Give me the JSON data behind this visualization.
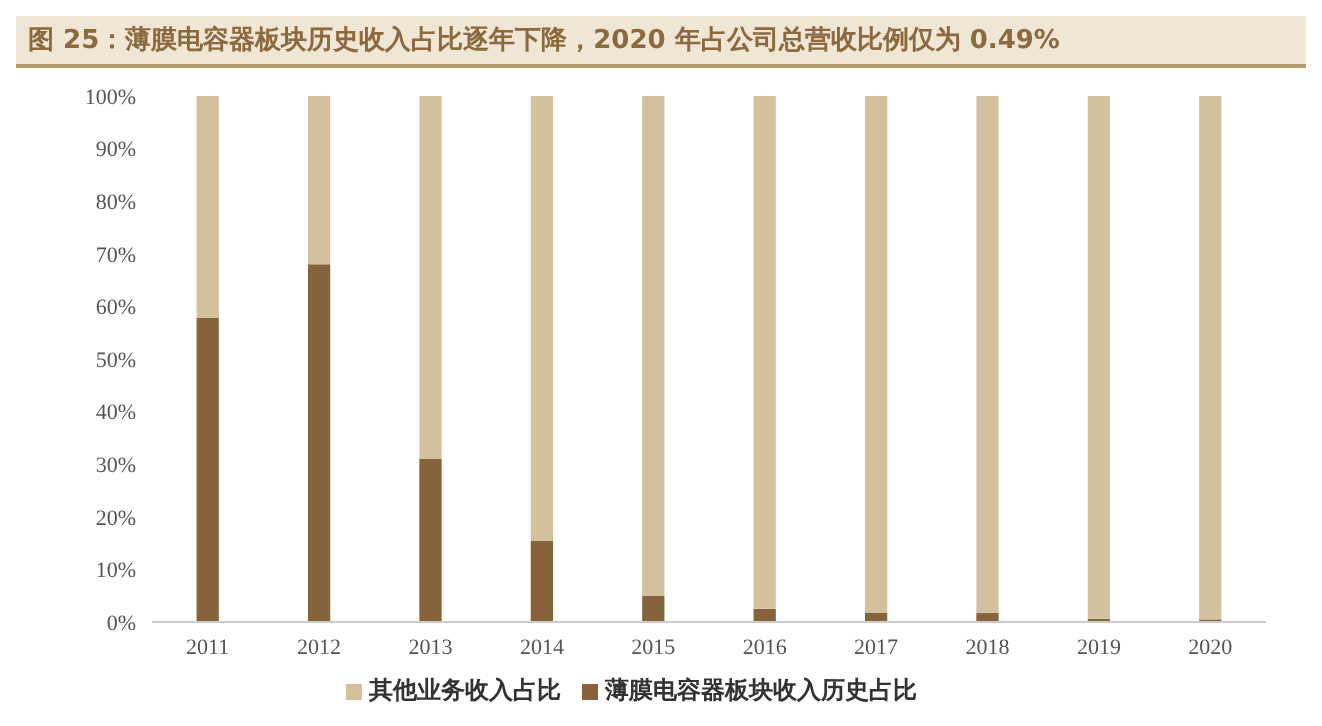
{
  "chart_data": {
    "type": "bar",
    "title": "图 25：薄膜电容器板块历史收入占比逐年下降，2020 年占公司总营收比例仅为 0.49%",
    "categories": [
      "2011",
      "2012",
      "2013",
      "2014",
      "2015",
      "2016",
      "2017",
      "2018",
      "2019",
      "2020"
    ],
    "stacked": true,
    "series": [
      {
        "name": "薄膜电容器板块收入历史占比",
        "color": "#86633a",
        "values": [
          57.8,
          68,
          31,
          15.5,
          5,
          2.5,
          1.8,
          1.7,
          0.6,
          0.49
        ]
      },
      {
        "name": "其他业务收入占比",
        "color": "#d3c19d",
        "values": [
          42.2,
          32,
          69,
          84.5,
          95,
          97.5,
          98.2,
          98.3,
          99.4,
          99.51
        ]
      }
    ],
    "ylim": [
      0,
      100
    ],
    "yticks": [
      {
        "value": 0,
        "label": "0%"
      },
      {
        "value": 10,
        "label": "10%"
      },
      {
        "value": 20,
        "label": "20%"
      },
      {
        "value": 30,
        "label": "30%"
      },
      {
        "value": 40,
        "label": "40%"
      },
      {
        "value": 50,
        "label": "50%"
      },
      {
        "value": 60,
        "label": "60%"
      },
      {
        "value": 70,
        "label": "70%"
      },
      {
        "value": 80,
        "label": "80%"
      },
      {
        "value": 90,
        "label": "90%"
      },
      {
        "value": 100,
        "label": "100%"
      }
    ],
    "grid": false,
    "legend": "bottom"
  }
}
